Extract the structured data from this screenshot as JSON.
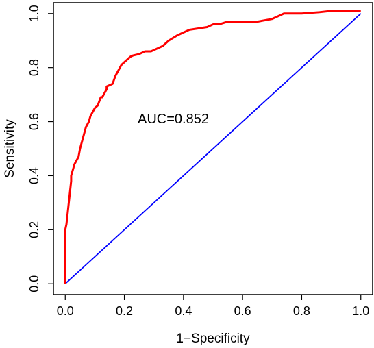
{
  "chart_data": {
    "type": "line",
    "title": "",
    "xlabel": "1−Specificity",
    "ylabel": "Sensitivity",
    "xlim": [
      -0.04,
      1.04
    ],
    "ylim": [
      -0.04,
      1.04
    ],
    "x_ticks": [
      "0.0",
      "0.2",
      "0.4",
      "0.6",
      "0.8",
      "1.0"
    ],
    "y_ticks": [
      "0.0",
      "0.2",
      "0.4",
      "0.6",
      "0.8",
      "1.0"
    ],
    "grid": false,
    "legend": "none",
    "annotation": "AUC=0.852",
    "series": [
      {
        "color": "#ff0000",
        "x": [
          0.0,
          0.0,
          0.004,
          0.008,
          0.012,
          0.016,
          0.02,
          0.02,
          0.028,
          0.03,
          0.045,
          0.05,
          0.06,
          0.065,
          0.07,
          0.08,
          0.085,
          0.095,
          0.1,
          0.11,
          0.12,
          0.125,
          0.13,
          0.14,
          0.14,
          0.16,
          0.17,
          0.18,
          0.19,
          0.2,
          0.21,
          0.22,
          0.23,
          0.25,
          0.27,
          0.29,
          0.31,
          0.33,
          0.35,
          0.38,
          0.4,
          0.42,
          0.45,
          0.48,
          0.5,
          0.52,
          0.55,
          0.6,
          0.65,
          0.7,
          0.72,
          0.74,
          0.8,
          0.86,
          0.9,
          1.0
        ],
        "y": [
          0.0,
          0.2,
          0.22,
          0.26,
          0.3,
          0.34,
          0.38,
          0.4,
          0.43,
          0.44,
          0.47,
          0.5,
          0.54,
          0.56,
          0.58,
          0.6,
          0.62,
          0.64,
          0.65,
          0.66,
          0.69,
          0.69,
          0.7,
          0.72,
          0.73,
          0.74,
          0.77,
          0.79,
          0.81,
          0.82,
          0.83,
          0.84,
          0.845,
          0.85,
          0.86,
          0.86,
          0.87,
          0.88,
          0.9,
          0.92,
          0.93,
          0.94,
          0.945,
          0.95,
          0.96,
          0.96,
          0.97,
          0.97,
          0.97,
          0.98,
          0.99,
          1.0,
          1.0,
          1.005,
          1.01,
          1.01
        ]
      },
      {
        "color": "#0000ff",
        "x": [
          0.0,
          1.0
        ],
        "y": [
          0.0,
          1.0
        ]
      }
    ]
  }
}
